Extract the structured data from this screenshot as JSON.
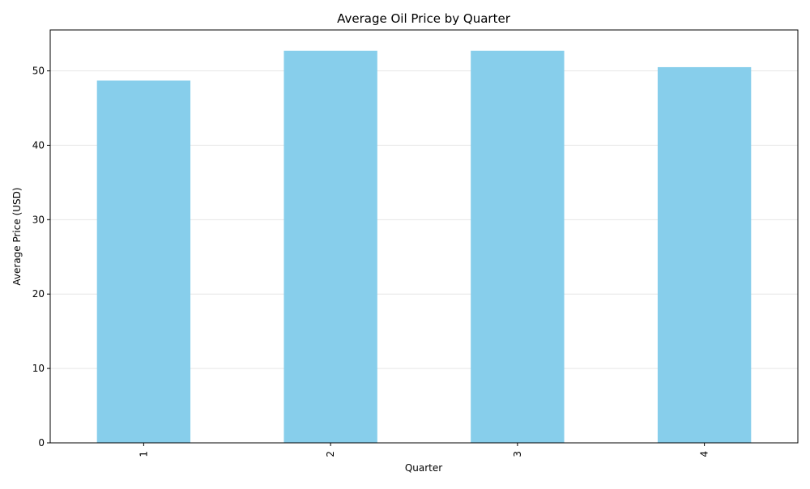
{
  "chart_data": {
    "type": "bar",
    "title": "Average Oil Price by Quarter",
    "xlabel": "Quarter",
    "ylabel": "Average Price (USD)",
    "categories": [
      "1",
      "2",
      "3",
      "4"
    ],
    "values": [
      48.7,
      52.7,
      52.7,
      50.5
    ],
    "ylim": [
      0,
      55.5
    ],
    "yticks": [
      0,
      10,
      20,
      30,
      40,
      50
    ],
    "ytick_labels": [
      "0",
      "10",
      "20",
      "30",
      "40",
      "50"
    ],
    "grid": "y-major",
    "legend": "none",
    "bar_color": "#87ceeb",
    "grid_color": "#e6e6e6",
    "axis_color": "#000000"
  }
}
